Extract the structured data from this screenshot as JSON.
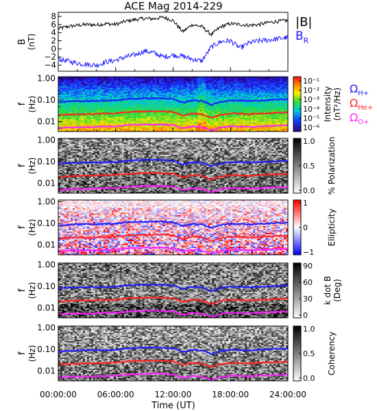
{
  "chart_data": [
    {
      "type": "line",
      "title": "ACE Mag 2014-229",
      "ylabel": "B",
      "yunit": "(nT)",
      "ylim": [
        -5.5,
        9
      ],
      "yticks": [
        -4,
        -2,
        0,
        2,
        4,
        6,
        8
      ],
      "x": [
        0,
        1,
        2,
        3,
        4,
        5,
        6,
        7,
        8,
        9,
        10,
        11,
        12,
        13,
        14,
        15,
        16,
        17,
        18,
        19,
        20,
        21,
        22,
        23,
        24
      ],
      "series": [
        {
          "name": "|B|",
          "color": "#000000",
          "values": [
            5.0,
            5.5,
            5.8,
            6.0,
            5.9,
            6.2,
            6.0,
            6.8,
            7.2,
            7.5,
            7.4,
            7.8,
            7.0,
            4.2,
            6.0,
            5.5,
            3.5,
            5.5,
            6.2,
            6.0,
            5.8,
            6.0,
            6.5,
            6.8,
            7.0
          ]
        },
        {
          "name": "B_R",
          "color": "#1a1aff",
          "values": [
            -2.5,
            -3.0,
            -3.5,
            -3.8,
            -4.0,
            -3.2,
            -2.8,
            -2.0,
            -1.5,
            -0.5,
            -1.0,
            -2.0,
            -1.5,
            -1.8,
            -2.5,
            -3.0,
            0.5,
            1.8,
            2.0,
            0.2,
            1.5,
            2.0,
            2.2,
            2.5,
            2.8
          ]
        }
      ]
    },
    {
      "type": "heatmap",
      "name": "intensity",
      "ylabel": "f",
      "yunit": "(Hz)",
      "yticks": [
        "1.00",
        "0.10",
        "0.01"
      ],
      "colorbar_label": "Intensity",
      "colorbar_unit": "(nT²/Hz)",
      "colorbar_ticks": [
        "10⁻¹",
        "10⁻²",
        "10⁻³",
        "10⁻⁴",
        "10⁻⁵",
        "10⁻⁶"
      ],
      "colormap": "rainbow"
    },
    {
      "type": "heatmap",
      "name": "polarization",
      "ylabel": "f",
      "yunit": "(Hz)",
      "yticks": [
        "1.00",
        "0.10",
        "0.01"
      ],
      "colorbar_label": "% Polarization",
      "colorbar_ticks": [
        "1.0",
        "0.5",
        "0.0"
      ],
      "colormap": "gray"
    },
    {
      "type": "heatmap",
      "name": "ellipticity",
      "ylabel": "f",
      "yunit": "(Hz)",
      "yticks": [
        "1.00",
        "0.10",
        "0.01"
      ],
      "colorbar_label": "Ellipticity",
      "colorbar_ticks": [
        "1",
        "0",
        "−1"
      ],
      "colormap": "blue-white-red"
    },
    {
      "type": "heatmap",
      "name": "kdotb",
      "ylabel": "f",
      "yunit": "(Hz)",
      "yticks": [
        "1.00",
        "0.10",
        "0.01"
      ],
      "colorbar_label": "k dot B",
      "colorbar_unit": "(Deg)",
      "colorbar_ticks": [
        "90",
        "60",
        "30",
        "0"
      ],
      "colormap": "gray"
    },
    {
      "type": "heatmap",
      "name": "coherency",
      "ylabel": "f",
      "yunit": "(Hz)",
      "yticks": [
        "1.00",
        "0.10",
        "0.01"
      ],
      "colorbar_label": "Coherency",
      "colorbar_ticks": [
        "1.0",
        "0.5",
        "0.0"
      ],
      "colormap": "gray"
    }
  ],
  "gyro_lines": {
    "x": [
      0,
      1,
      2,
      3,
      4,
      5,
      6,
      7,
      8,
      9,
      10,
      11,
      12,
      13,
      14,
      15,
      16,
      17,
      18,
      19,
      20,
      21,
      22,
      23,
      24
    ],
    "series": [
      {
        "name": "Ω",
        "sub": "H+",
        "color": "#1a1aff",
        "values": [
          0.08,
          0.085,
          0.09,
          0.09,
          0.092,
          0.095,
          0.095,
          0.11,
          0.115,
          0.12,
          0.12,
          0.12,
          0.11,
          0.075,
          0.095,
          0.09,
          0.06,
          0.085,
          0.095,
          0.095,
          0.09,
          0.095,
          0.1,
          0.105,
          0.11
        ]
      },
      {
        "name": "Ω",
        "sub": "He+",
        "color": "#ff2020",
        "values": [
          0.02,
          0.021,
          0.022,
          0.022,
          0.023,
          0.024,
          0.024,
          0.027,
          0.029,
          0.03,
          0.03,
          0.03,
          0.028,
          0.019,
          0.024,
          0.022,
          0.015,
          0.021,
          0.024,
          0.024,
          0.022,
          0.024,
          0.025,
          0.026,
          0.027
        ]
      },
      {
        "name": "Ω",
        "sub": "O+",
        "color": "#ff20ff",
        "values": [
          0.005,
          0.0053,
          0.0055,
          0.0055,
          0.0057,
          0.006,
          0.006,
          0.0068,
          0.0072,
          0.0075,
          0.0075,
          0.0075,
          0.007,
          0.0048,
          0.006,
          0.0056,
          0.0038,
          0.0053,
          0.006,
          0.006,
          0.0056,
          0.006,
          0.0063,
          0.0065,
          0.0068
        ]
      }
    ]
  },
  "xaxis": {
    "label": "Time (UT)",
    "range": [
      0,
      24
    ],
    "ticks": [
      0,
      6,
      12,
      18,
      24
    ],
    "tick_labels": [
      "00:00:00",
      "06:00:00",
      "12:00:00",
      "18:00:00",
      "24:00:00"
    ]
  },
  "legend_top": {
    "b_label": "|B|",
    "br_label": "B",
    "br_sub": "R"
  }
}
